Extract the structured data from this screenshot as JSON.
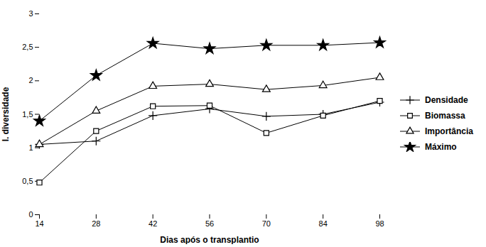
{
  "chart_data": {
    "type": "line",
    "xlabel": "Dias após o transplantio",
    "ylabel": "I. diversidade",
    "x": [
      14,
      28,
      42,
      56,
      70,
      84,
      98
    ],
    "series": [
      {
        "name": "Densidade",
        "color": "#000000",
        "marker": "plus",
        "values": [
          1.05,
          1.1,
          1.48,
          1.58,
          1.47,
          1.5,
          1.68
        ]
      },
      {
        "name": "Biomassa",
        "color": "#000000",
        "marker": "square",
        "values": [
          0.48,
          1.25,
          1.62,
          1.63,
          1.22,
          1.48,
          1.7
        ]
      },
      {
        "name": "Importância",
        "color": "#000000",
        "marker": "triangle",
        "values": [
          1.05,
          1.55,
          1.92,
          1.95,
          1.87,
          1.93,
          2.05
        ]
      },
      {
        "name": "Máximo",
        "color": "#000000",
        "marker": "star",
        "values": [
          1.4,
          2.08,
          2.56,
          2.48,
          2.53,
          2.53,
          2.57
        ]
      }
    ],
    "xlim": [
      14,
      98
    ],
    "xticks": [
      14,
      28,
      42,
      56,
      70,
      84,
      98
    ],
    "ylim": [
      0,
      3
    ],
    "yticks": [
      0,
      {
        "value": 0.5,
        "label": "0,5"
      },
      1,
      {
        "value": 1.5,
        "label": "1,5"
      },
      2,
      {
        "value": 2.5,
        "label": "2,5"
      },
      3
    ],
    "grid": false,
    "legend": "right"
  }
}
